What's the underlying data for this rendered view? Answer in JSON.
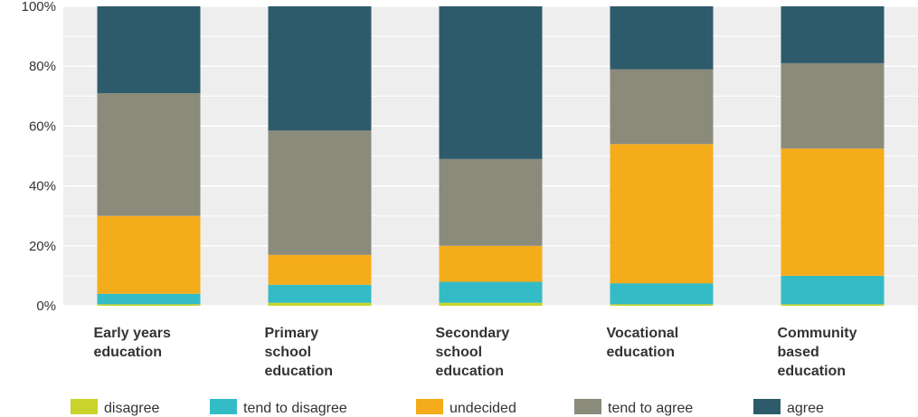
{
  "chart_data": {
    "type": "bar",
    "stacked": true,
    "title": "",
    "xlabel": "",
    "ylabel": "",
    "ylim": [
      0,
      100
    ],
    "y_ticks": [
      "0%",
      "20%",
      "40%",
      "60%",
      "80%",
      "100%"
    ],
    "grid": true,
    "legend_position": "bottom",
    "categories": [
      [
        "Early years",
        "education"
      ],
      [
        "Primary",
        "school",
        "education"
      ],
      [
        "Secondary",
        "school",
        "education"
      ],
      [
        "Vocational",
        "education"
      ],
      [
        "Community",
        "based",
        "education"
      ]
    ],
    "series": [
      {
        "name": "disagree",
        "color": "#c8d42a",
        "values": [
          0.5,
          1,
          1,
          0.5,
          0.5
        ]
      },
      {
        "name": "tend to disagree",
        "color": "#33bcc5",
        "values": [
          3.5,
          6,
          7,
          7,
          9.5
        ]
      },
      {
        "name": "undecided",
        "color": "#f5ac1b",
        "values": [
          26,
          10,
          12,
          46.5,
          42.5
        ]
      },
      {
        "name": "tend to agree",
        "color": "#8b8b7c",
        "values": [
          41,
          41.5,
          29,
          25,
          28.5
        ]
      },
      {
        "name": "agree",
        "color": "#2e5b6b",
        "values": [
          29,
          41.5,
          51,
          21,
          19
        ]
      }
    ]
  }
}
